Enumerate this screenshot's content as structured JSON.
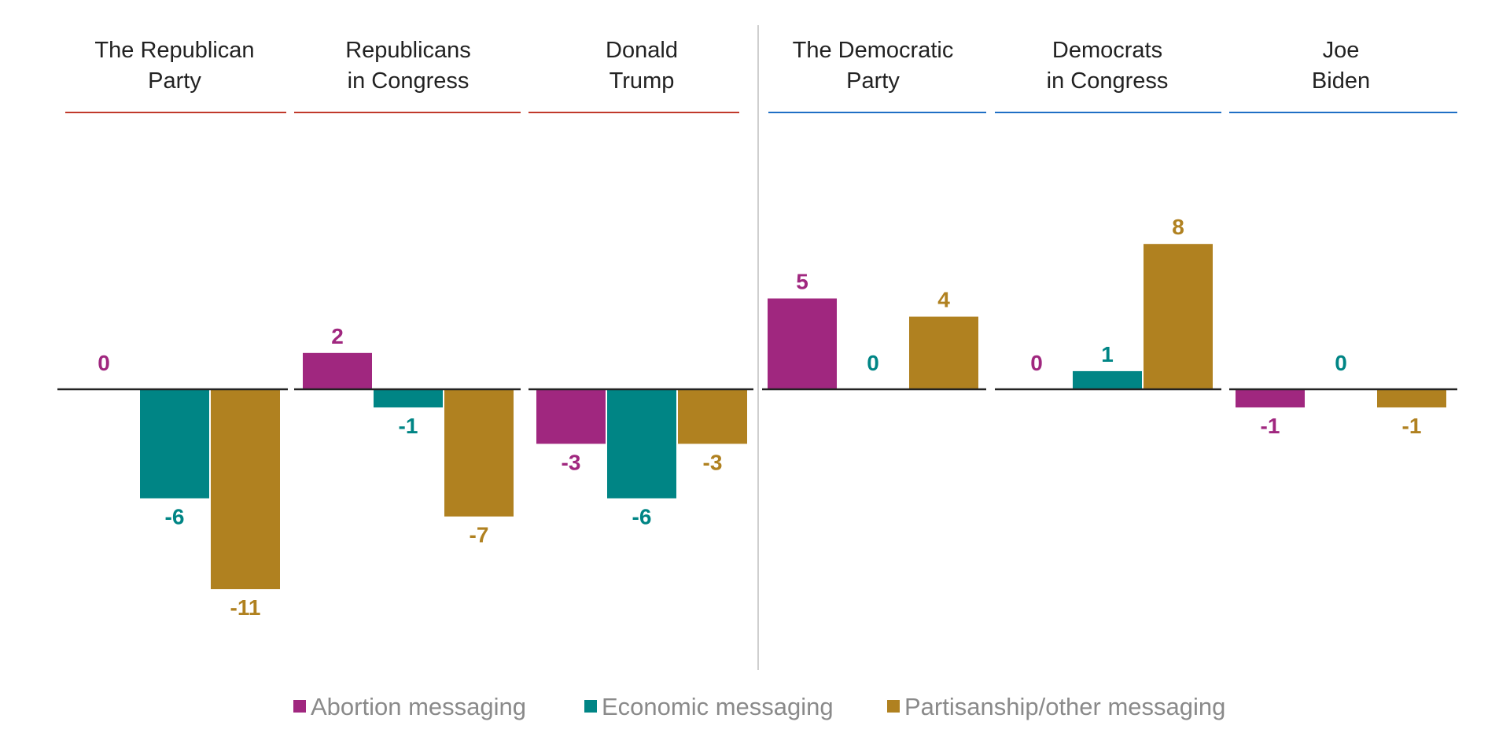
{
  "chart_data": {
    "type": "bar",
    "grid": false,
    "legend_position": "bottom-center",
    "series": [
      {
        "name": "Abortion messaging",
        "color": "#a0277f"
      },
      {
        "name": "Economic messaging",
        "color": "#008585"
      },
      {
        "name": "Partisanship/other messaging",
        "color": "#b08120"
      }
    ],
    "groups": [
      {
        "party": "republican",
        "accent": "#c0392b",
        "panels": [
          {
            "title_lines": [
              "The Republican",
              "Party"
            ],
            "values": [
              0,
              -6,
              -11
            ]
          },
          {
            "title_lines": [
              "Republicans",
              "in Congress"
            ],
            "values": [
              2,
              -1,
              -7
            ]
          },
          {
            "title_lines": [
              "Donald",
              "Trump"
            ],
            "values": [
              -3,
              -6,
              -3
            ]
          }
        ]
      },
      {
        "party": "democratic",
        "accent": "#1f6fc5",
        "panels": [
          {
            "title_lines": [
              "The Democratic",
              "Party"
            ],
            "values": [
              5,
              0,
              4
            ]
          },
          {
            "title_lines": [
              "Democrats",
              "in Congress"
            ],
            "values": [
              0,
              1,
              8
            ]
          },
          {
            "title_lines": [
              "Joe",
              "Biden"
            ],
            "values": [
              -1,
              0,
              -1
            ]
          }
        ]
      }
    ]
  }
}
